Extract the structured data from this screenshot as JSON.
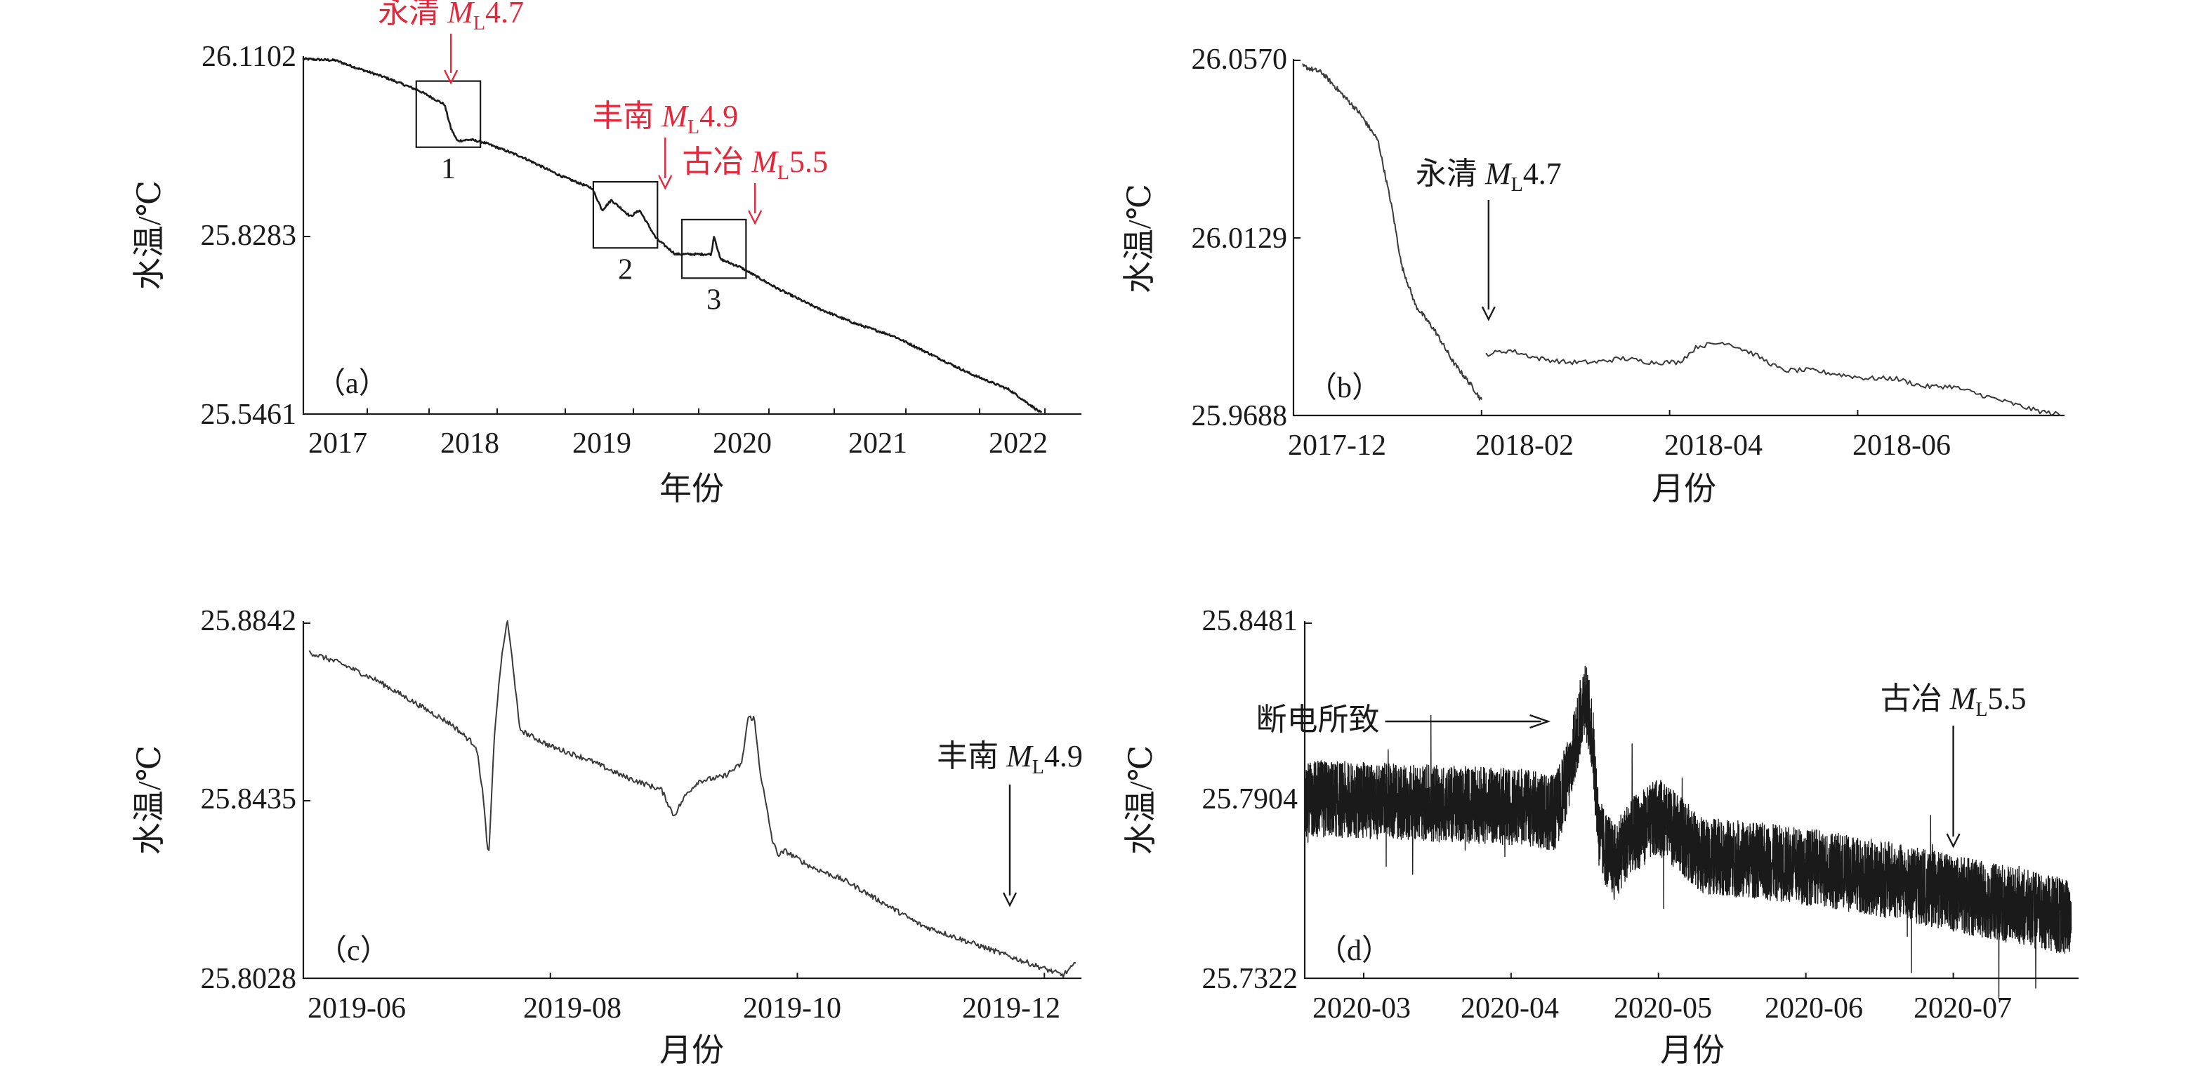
{
  "figure": {
    "colors": {
      "axis": "#1a1a1a",
      "line": "#1a1a1a",
      "line_thin": "#3a3a3a",
      "annotation_red": "#e4283c",
      "annotation_black": "#1a1a1a"
    }
  },
  "chart_data": [
    {
      "id": "a",
      "panel_label": "（a）",
      "type": "line",
      "xlabel": "年份",
      "ylabel": "水温/℃",
      "x_ticks": [
        "2017",
        "2018",
        "2019",
        "2020",
        "2021",
        "2022"
      ],
      "y_ticks": [
        "26.1102",
        "25.8283",
        "25.5461"
      ],
      "xlim": [
        2016.6,
        2022.5
      ],
      "ylim": [
        25.5461,
        26.1102
      ],
      "series": [
        {
          "x": [
            2016.6,
            2016.85,
            2017.0,
            2017.25,
            2017.5,
            2017.7,
            2017.75,
            2017.8,
            2017.9,
            2018.0,
            2018.3,
            2018.6,
            2018.85,
            2018.93,
            2019.0,
            2019.15,
            2019.22,
            2019.35,
            2019.5,
            2019.78,
            2019.8,
            2019.85,
            2020.0,
            2020.3,
            2020.6,
            2020.9,
            2021.2,
            2021.5,
            2021.8,
            2022.1,
            2022.35
          ],
          "y": [
            26.1102,
            26.108,
            26.097,
            26.08,
            26.06,
            26.038,
            26.0,
            25.98,
            25.982,
            25.978,
            25.955,
            25.925,
            25.905,
            25.87,
            25.886,
            25.86,
            25.87,
            25.825,
            25.8,
            25.8,
            25.83,
            25.792,
            25.78,
            25.745,
            25.715,
            25.69,
            25.67,
            25.64,
            25.61,
            25.585,
            25.548
          ]
        }
      ],
      "annotations": [
        {
          "text_cn": "永清 ",
          "text_m": "M",
          "text_sub": "L",
          "text_val": "4.7",
          "x": 2017.75
        },
        {
          "text_cn": "丰南 ",
          "text_m": "M",
          "text_sub": "L",
          "text_val": "4.9",
          "x": 2019.42
        },
        {
          "text_cn": "古冶 ",
          "text_m": "M",
          "text_sub": "L",
          "text_val": "5.5",
          "x": 2020.12
        }
      ],
      "boxes": [
        {
          "label": "1",
          "x0": 2017.48,
          "x1": 2017.98,
          "y0": 25.97,
          "y1": 26.075
        },
        {
          "label": "2",
          "x0": 2018.86,
          "x1": 2019.36,
          "y0": 25.81,
          "y1": 25.915
        },
        {
          "label": "3",
          "x0": 2019.55,
          "x1": 2020.05,
          "y0": 25.762,
          "y1": 25.855
        }
      ]
    },
    {
      "id": "b",
      "panel_label": "（b）",
      "type": "line",
      "xlabel": "月份",
      "ylabel": "水温/℃",
      "x_ticks": [
        "2017-12",
        "2018-02",
        "2018-04",
        "2018-06"
      ],
      "y_ticks": [
        "26.0570",
        "26.0129",
        "25.9688"
      ],
      "xlim": [
        0,
        8.2
      ],
      "ylim": [
        25.9688,
        26.057
      ],
      "x_tick_positions": [
        0.0,
        2.0,
        4.0,
        6.0
      ],
      "series": [
        {
          "segments": [
            {
              "x": [
                0.1,
                0.3,
                0.5,
                0.7,
                0.9,
                1.05,
                1.15,
                1.3,
                1.5,
                1.7,
                1.9,
                2.0
              ],
              "y": [
                26.0555,
                26.054,
                26.049,
                26.044,
                26.037,
                26.02,
                26.006,
                25.996,
                25.99,
                25.982,
                25.976,
                25.9725
              ]
            },
            {
              "x": [
                2.05,
                2.3,
                2.6,
                2.9,
                3.2,
                3.5,
                3.8,
                4.1,
                4.3,
                4.6,
                4.9,
                5.2,
                5.5,
                5.8,
                6.1,
                6.4,
                6.7,
                7.0,
                7.3,
                7.6,
                7.9,
                8.15
              ],
              "y": [
                25.984,
                25.985,
                25.983,
                25.982,
                25.982,
                25.983,
                25.982,
                25.982,
                25.986,
                25.987,
                25.984,
                25.98,
                25.98,
                25.979,
                25.978,
                25.978,
                25.976,
                25.976,
                25.974,
                25.972,
                25.97,
                25.969
              ]
            }
          ]
        }
      ],
      "annotations": [
        {
          "text_cn": "永清 ",
          "text_m": "M",
          "text_sub": "L",
          "text_val": "4.7",
          "x": 2.0
        }
      ]
    },
    {
      "id": "c",
      "panel_label": "（c）",
      "type": "line",
      "xlabel": "月份",
      "ylabel": "水温/℃",
      "x_ticks": [
        "2019-06",
        "2019-08",
        "2019-10",
        "2019-12"
      ],
      "y_ticks": [
        "25.8842",
        "25.8435",
        "25.8028"
      ],
      "xlim": [
        0,
        6.3
      ],
      "ylim": [
        25.8028,
        25.8842
      ],
      "x_tick_positions": [
        0.0,
        2.0,
        4.0,
        6.0
      ],
      "series": [
        {
          "x": [
            0.05,
            0.3,
            0.6,
            0.9,
            1.2,
            1.4,
            1.45,
            1.5,
            1.55,
            1.6,
            1.65,
            1.7,
            1.75,
            1.8,
            2.0,
            2.3,
            2.6,
            2.9,
            3.0,
            3.1,
            3.2,
            3.4,
            3.55,
            3.6,
            3.65,
            3.7,
            3.8,
            3.85,
            3.9,
            4.1,
            4.4,
            4.7,
            5.0,
            5.3,
            5.6,
            5.9,
            6.15,
            6.25
          ],
          "y": [
            25.8775,
            25.875,
            25.871,
            25.866,
            25.861,
            25.856,
            25.846,
            25.83,
            25.86,
            25.875,
            25.885,
            25.874,
            25.86,
            25.859,
            25.856,
            25.853,
            25.849,
            25.846,
            25.84,
            25.845,
            25.848,
            25.849,
            25.852,
            25.8625,
            25.8625,
            25.85,
            25.834,
            25.831,
            25.832,
            25.8285,
            25.825,
            25.82,
            25.815,
            25.812,
            25.809,
            25.806,
            25.8035,
            25.806
          ]
        }
      ],
      "annotations": [
        {
          "text_cn": "丰南 ",
          "text_m": "M",
          "text_sub": "L",
          "text_val": "4.9",
          "x": 5.72
        }
      ]
    },
    {
      "id": "d",
      "panel_label": "（d）",
      "type": "line",
      "xlabel": "月份",
      "ylabel": "水温/℃",
      "x_ticks": [
        "2020-03",
        "2020-04",
        "2020-05",
        "2020-06",
        "2020-07"
      ],
      "y_ticks": [
        "25.8481",
        "25.7904",
        "25.7322"
      ],
      "xlim": [
        0,
        5.25
      ],
      "ylim": [
        25.7322,
        25.8481
      ],
      "x_tick_positions": [
        0.4,
        1.4,
        2.4,
        3.4,
        4.4
      ],
      "series": [
        {
          "x": [
            0.0,
            0.5,
            1.0,
            1.5,
            1.7,
            1.8,
            1.9,
            1.95,
            2.0,
            2.1,
            2.2,
            2.4,
            2.55,
            2.7,
            3.0,
            3.5,
            4.0,
            4.5,
            5.0,
            5.2
          ],
          "y": [
            25.791,
            25.79,
            25.789,
            25.788,
            25.786,
            25.8,
            25.825,
            25.812,
            25.778,
            25.77,
            25.778,
            25.785,
            25.779,
            25.772,
            25.771,
            25.768,
            25.764,
            25.759,
            25.754,
            25.752
          ],
          "noise_amplitude": 0.0125
        }
      ],
      "annotations": [
        {
          "text_cn": "断电所致",
          "x": 1.67
        },
        {
          "text_cn": "古冶 ",
          "text_m": "M",
          "text_sub": "L",
          "text_val": "5.5",
          "x": 4.4
        }
      ]
    }
  ]
}
